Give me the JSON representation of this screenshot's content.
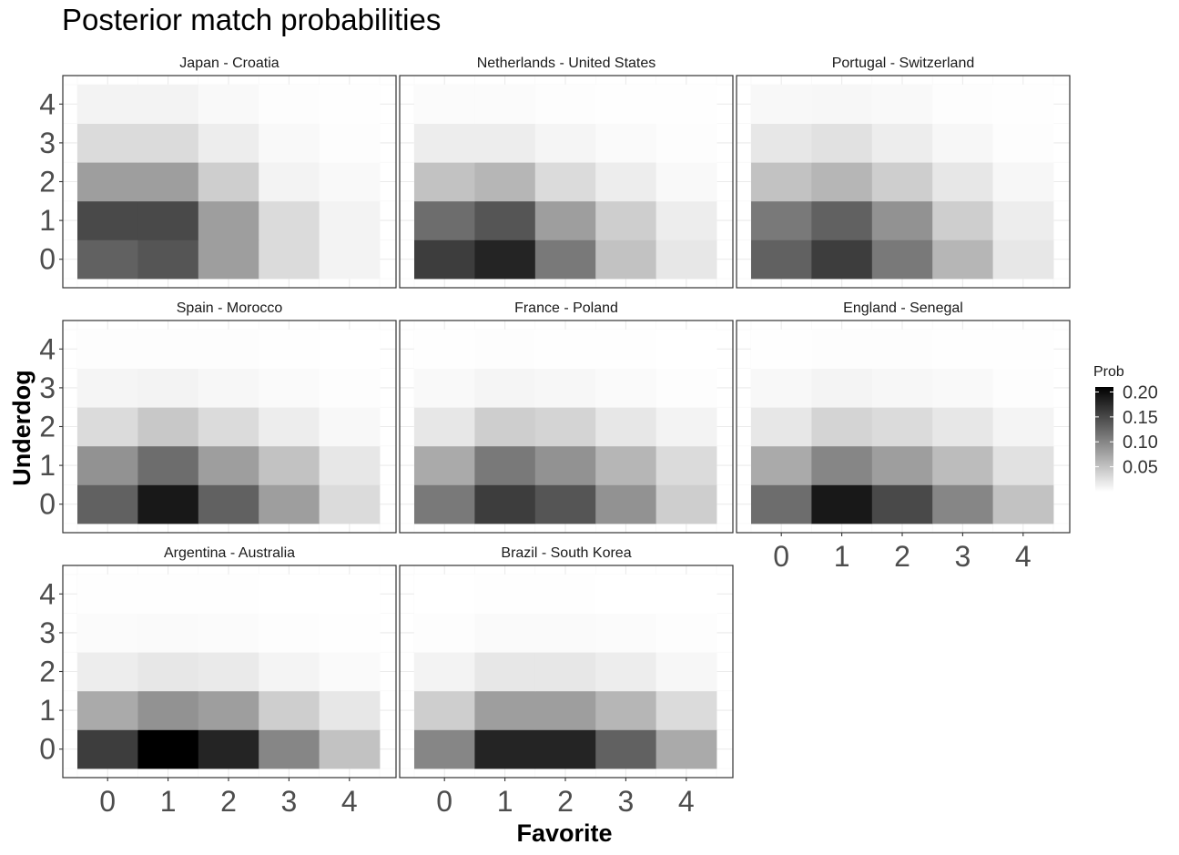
{
  "chart_data": {
    "type": "heatmap",
    "title": "Posterior match probabilities",
    "xlabel": "Favorite",
    "ylabel": "Underdog",
    "x_ticks": [
      "0",
      "1",
      "2",
      "3",
      "4"
    ],
    "y_ticks": [
      "0",
      "1",
      "2",
      "3",
      "4"
    ],
    "legend": {
      "title": "Prob",
      "placement": "right",
      "range": [
        0,
        0.21
      ],
      "ticks": [
        "0.20",
        "0.15",
        "0.10",
        "0.05"
      ],
      "tick_values": [
        0.2,
        0.15,
        0.1,
        0.05
      ],
      "low_color": "#ffffff",
      "high_color": "#000000"
    },
    "grid": true,
    "panels": [
      {
        "name": "Japan - Croatia",
        "values": [
          [
            0.13,
            0.14,
            0.08,
            0.03,
            0.01
          ],
          [
            0.15,
            0.15,
            0.08,
            0.03,
            0.01
          ],
          [
            0.08,
            0.08,
            0.04,
            0.01,
            0.005
          ],
          [
            0.03,
            0.03,
            0.015,
            0.005,
            0.002
          ],
          [
            0.01,
            0.01,
            0.005,
            0.002,
            0.001
          ]
        ]
      },
      {
        "name": "Netherlands - United States",
        "values": [
          [
            0.16,
            0.18,
            0.11,
            0.05,
            0.02
          ],
          [
            0.12,
            0.14,
            0.08,
            0.04,
            0.015
          ],
          [
            0.05,
            0.06,
            0.03,
            0.015,
            0.005
          ],
          [
            0.015,
            0.015,
            0.008,
            0.004,
            0.002
          ],
          [
            0.003,
            0.003,
            0.002,
            0.001,
            0.0005
          ]
        ]
      },
      {
        "name": "Portugal - Switzerland",
        "values": [
          [
            0.13,
            0.16,
            0.11,
            0.06,
            0.02
          ],
          [
            0.11,
            0.13,
            0.09,
            0.04,
            0.015
          ],
          [
            0.05,
            0.06,
            0.04,
            0.02,
            0.007
          ],
          [
            0.02,
            0.025,
            0.015,
            0.007,
            0.002
          ],
          [
            0.006,
            0.007,
            0.005,
            0.002,
            0.0008
          ]
        ]
      },
      {
        "name": "Spain - Morocco",
        "values": [
          [
            0.13,
            0.19,
            0.13,
            0.08,
            0.03
          ],
          [
            0.09,
            0.12,
            0.08,
            0.05,
            0.02
          ],
          [
            0.03,
            0.045,
            0.03,
            0.015,
            0.006
          ],
          [
            0.008,
            0.01,
            0.007,
            0.004,
            0.0015
          ],
          [
            0.002,
            0.002,
            0.0015,
            0.0008,
            0.0003
          ]
        ]
      },
      {
        "name": "France - Poland",
        "values": [
          [
            0.11,
            0.16,
            0.14,
            0.09,
            0.04
          ],
          [
            0.07,
            0.11,
            0.09,
            0.06,
            0.03
          ],
          [
            0.02,
            0.04,
            0.035,
            0.02,
            0.01
          ],
          [
            0.005,
            0.008,
            0.007,
            0.004,
            0.002
          ],
          [
            0.001,
            0.0015,
            0.0012,
            0.0008,
            0.0004
          ]
        ]
      },
      {
        "name": "England - Senegal",
        "values": [
          [
            0.12,
            0.19,
            0.15,
            0.1,
            0.05
          ],
          [
            0.07,
            0.1,
            0.08,
            0.055,
            0.025
          ],
          [
            0.02,
            0.035,
            0.03,
            0.02,
            0.009
          ],
          [
            0.006,
            0.009,
            0.007,
            0.005,
            0.002
          ],
          [
            0.0012,
            0.0018,
            0.0015,
            0.001,
            0.0005
          ]
        ]
      },
      {
        "name": "Argentina - Australia",
        "values": [
          [
            0.16,
            0.21,
            0.18,
            0.1,
            0.05
          ],
          [
            0.07,
            0.09,
            0.08,
            0.04,
            0.02
          ],
          [
            0.015,
            0.02,
            0.017,
            0.009,
            0.004
          ],
          [
            0.003,
            0.004,
            0.003,
            0.0015,
            0.0006
          ],
          [
            0.0005,
            0.0006,
            0.0005,
            0.0002,
            0.0001
          ]
        ]
      },
      {
        "name": "Brazil - South Korea",
        "values": [
          [
            0.1,
            0.18,
            0.18,
            0.13,
            0.07
          ],
          [
            0.04,
            0.08,
            0.08,
            0.06,
            0.03
          ],
          [
            0.01,
            0.02,
            0.02,
            0.015,
            0.007
          ],
          [
            0.002,
            0.004,
            0.004,
            0.003,
            0.0015
          ],
          [
            0.0003,
            0.0006,
            0.0006,
            0.0004,
            0.0002
          ]
        ]
      }
    ]
  }
}
